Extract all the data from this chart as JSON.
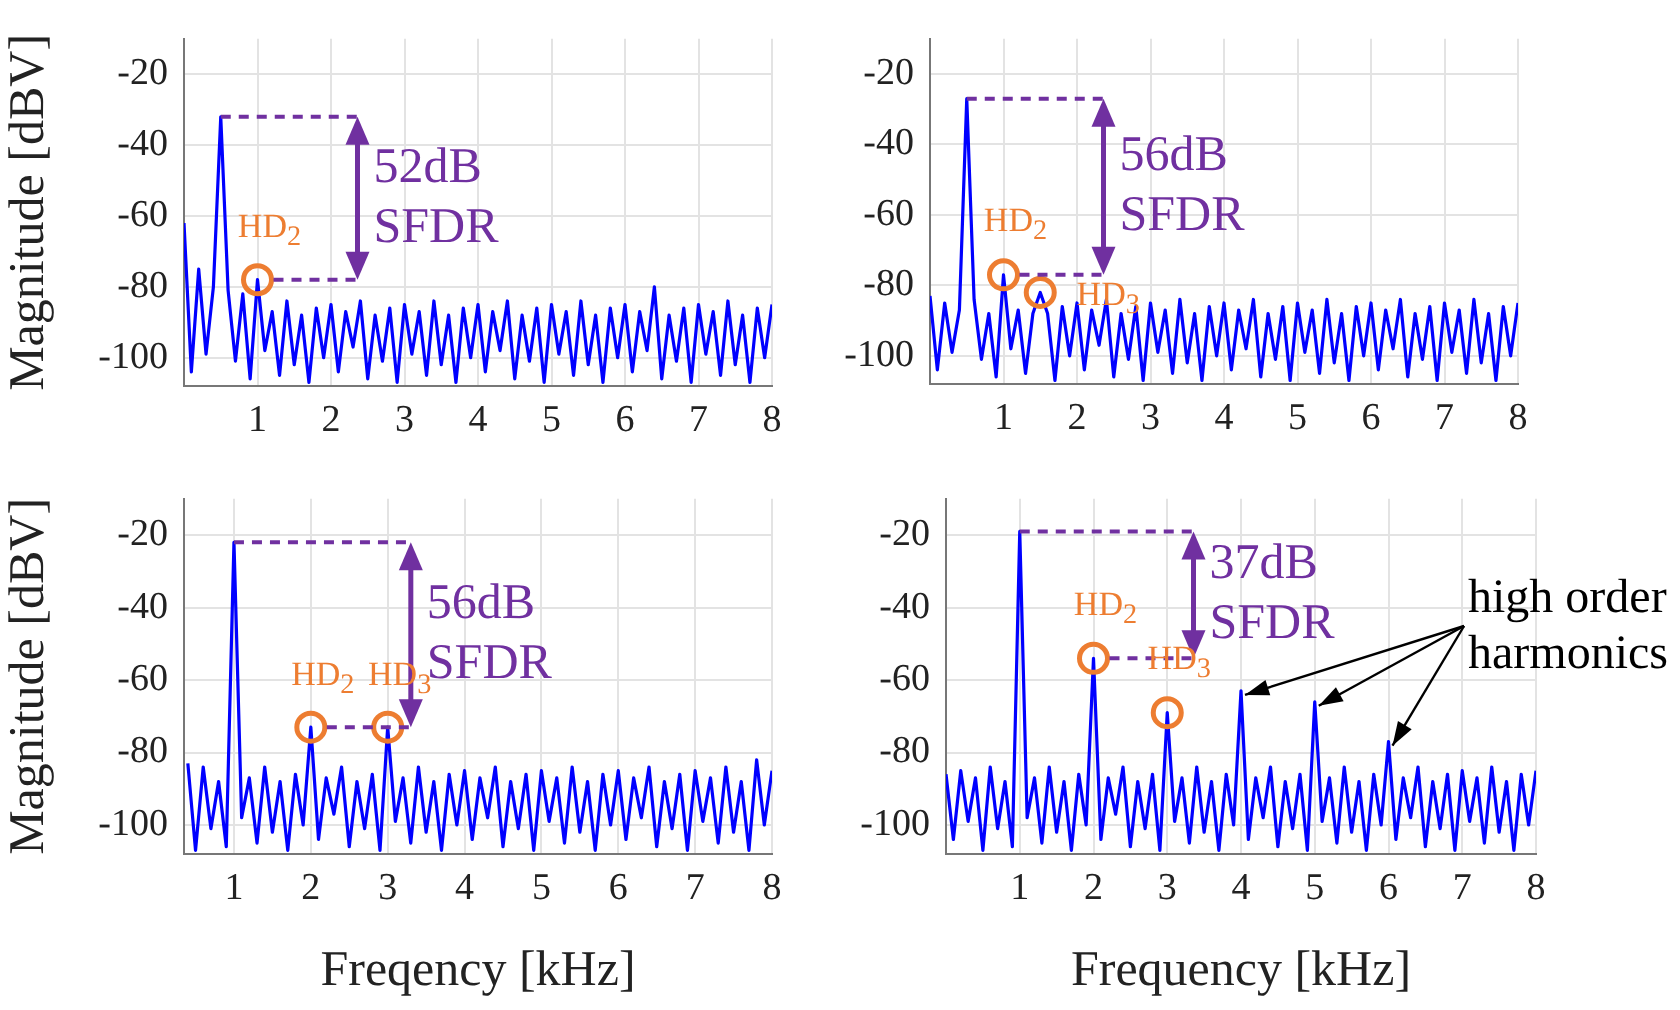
{
  "chart_data": [
    {
      "type": "line",
      "ylabel": "Magnitude [dBV]",
      "xlim": [
        0,
        8
      ],
      "ylim": [
        -108,
        -10
      ],
      "xticks": [
        1,
        2,
        3,
        4,
        5,
        6,
        7,
        8
      ],
      "yticks": [
        -100,
        -80,
        -60,
        -40,
        -20
      ],
      "grid": true,
      "x": [
        0,
        0.1,
        0.2,
        0.3,
        0.4,
        0.5,
        0.6,
        0.7,
        0.8,
        0.9,
        1,
        1.1,
        1.2,
        1.3,
        1.4,
        1.5,
        1.6,
        1.7,
        1.8,
        1.9,
        2,
        2.1,
        2.2,
        2.3,
        2.4,
        2.5,
        2.6,
        2.7,
        2.8,
        2.9,
        3,
        3.1,
        3.2,
        3.3,
        3.4,
        3.5,
        3.6,
        3.7,
        3.8,
        3.9,
        4,
        4.1,
        4.2,
        4.3,
        4.4,
        4.5,
        4.6,
        4.7,
        4.8,
        4.9,
        5,
        5.1,
        5.2,
        5.3,
        5.4,
        5.5,
        5.6,
        5.7,
        5.8,
        5.9,
        6,
        6.1,
        6.2,
        6.3,
        6.4,
        6.5,
        6.6,
        6.7,
        6.8,
        6.9,
        7,
        7.1,
        7.2,
        7.3,
        7.4,
        7.5,
        7.6,
        7.7,
        7.8,
        7.9,
        8
      ],
      "series": [
        {
          "color": "#0000ff",
          "values": [
            -62,
            -104,
            -75,
            -99,
            -80,
            -32,
            -81,
            -101,
            -82,
            -106,
            -78,
            -98,
            -87,
            -105,
            -84,
            -102,
            -88,
            -107,
            -86,
            -100,
            -85,
            -104,
            -87,
            -97,
            -84,
            -106,
            -88,
            -101,
            -86,
            -107,
            -85,
            -99,
            -87,
            -105,
            -84,
            -102,
            -88,
            -107,
            -86,
            -100,
            -85,
            -104,
            -87,
            -98,
            -84,
            -106,
            -88,
            -101,
            -86,
            -107,
            -85,
            -99,
            -87,
            -105,
            -84,
            -102,
            -88,
            -107,
            -86,
            -100,
            -85,
            -104,
            -87,
            -98,
            -80,
            -106,
            -88,
            -101,
            -86,
            -107,
            -85,
            -99,
            -87,
            -105,
            -84,
            -102,
            -88,
            -107,
            -86,
            -100,
            -85
          ]
        },
        {
          "type": "scatter",
          "color": "#ed7d31",
          "marker": "circle",
          "x": [
            1
          ],
          "values": [
            -78
          ]
        }
      ],
      "annotations": [
        {
          "text": "52dB\nSFDR",
          "x": 1,
          "y": -78
        },
        "HD$_{2}$"
      ]
    },
    {
      "type": "line",
      "xlim": [
        0,
        8
      ],
      "ylim": [
        -108,
        -10
      ],
      "xticks": [
        1,
        2,
        3,
        4,
        5,
        6,
        7,
        8
      ],
      "yticks": [
        -100,
        -80,
        -60,
        -40,
        -20
      ],
      "grid": true,
      "x": [
        0,
        0.1,
        0.2,
        0.3,
        0.4,
        0.5,
        0.6,
        0.7,
        0.8,
        0.9,
        1,
        1.1,
        1.2,
        1.3,
        1.4,
        1.5,
        1.6,
        1.7,
        1.8,
        1.9,
        2,
        2.1,
        2.2,
        2.3,
        2.4,
        2.5,
        2.6,
        2.7,
        2.8,
        2.9,
        3,
        3.1,
        3.2,
        3.3,
        3.4,
        3.5,
        3.6,
        3.7,
        3.8,
        3.9,
        4,
        4.1,
        4.2,
        4.3,
        4.4,
        4.5,
        4.6,
        4.7,
        4.8,
        4.9,
        5,
        5.1,
        5.2,
        5.3,
        5.4,
        5.5,
        5.6,
        5.7,
        5.8,
        5.9,
        6,
        6.1,
        6.2,
        6.3,
        6.4,
        6.5,
        6.6,
        6.7,
        6.8,
        6.9,
        7,
        7.1,
        7.2,
        7.3,
        7.4,
        7.5,
        7.6,
        7.7,
        7.8,
        7.9,
        8
      ],
      "series": [
        {
          "color": "#0000ff",
          "values": [
            -83,
            -104,
            -85,
            -99,
            -87,
            -27,
            -84,
            -101,
            -88,
            -106,
            -77,
            -98,
            -87,
            -105,
            -88,
            -82,
            -88,
            -107,
            -86,
            -100,
            -85,
            -104,
            -87,
            -97,
            -84,
            -106,
            -88,
            -101,
            -86,
            -107,
            -85,
            -99,
            -87,
            -105,
            -84,
            -102,
            -88,
            -107,
            -86,
            -100,
            -85,
            -104,
            -87,
            -98,
            -84,
            -106,
            -88,
            -101,
            -86,
            -107,
            -85,
            -99,
            -87,
            -105,
            -84,
            -102,
            -88,
            -107,
            -86,
            -100,
            -85,
            -104,
            -87,
            -98,
            -84,
            -106,
            -88,
            -101,
            -86,
            -107,
            -85,
            -99,
            -87,
            -105,
            -84,
            -102,
            -88,
            -107,
            -86,
            -100,
            -85
          ]
        },
        {
          "type": "scatter",
          "color": "#ed7d31",
          "marker": "circle",
          "x": [
            1,
            1.5
          ],
          "values": [
            -77,
            -82
          ]
        }
      ],
      "annotations": [
        {
          "text": "56dB\nSFDR",
          "x": 1,
          "y": -77
        },
        "HD$_{2}$",
        "HD$_{3}$"
      ]
    },
    {
      "type": "line",
      "xlabel": "Freqency [kHz]",
      "ylabel": "Magnitude [dBV]",
      "xlim": [
        0.35,
        8
      ],
      "ylim": [
        -108,
        -10
      ],
      "xticks": [
        1,
        2,
        3,
        4,
        5,
        6,
        7,
        8
      ],
      "yticks": [
        -100,
        -80,
        -60,
        -40,
        -20
      ],
      "grid": true,
      "x": [
        0.4,
        0.5,
        0.6,
        0.7,
        0.8,
        0.9,
        1,
        1.1,
        1.2,
        1.3,
        1.4,
        1.5,
        1.6,
        1.7,
        1.8,
        1.9,
        2,
        2.1,
        2.2,
        2.3,
        2.4,
        2.5,
        2.6,
        2.7,
        2.8,
        2.9,
        3,
        3.1,
        3.2,
        3.3,
        3.4,
        3.5,
        3.6,
        3.7,
        3.8,
        3.9,
        4,
        4.1,
        4.2,
        4.3,
        4.4,
        4.5,
        4.6,
        4.7,
        4.8,
        4.9,
        5,
        5.1,
        5.2,
        5.3,
        5.4,
        5.5,
        5.6,
        5.7,
        5.8,
        5.9,
        6,
        6.1,
        6.2,
        6.3,
        6.4,
        6.5,
        6.6,
        6.7,
        6.8,
        6.9,
        7,
        7.1,
        7.2,
        7.3,
        7.4,
        7.5,
        7.6,
        7.7,
        7.8,
        7.9,
        8
      ],
      "series": [
        {
          "color": "#0000ff",
          "values": [
            -83,
            -107,
            -84,
            -101,
            -88,
            -106,
            -22,
            -98,
            -87,
            -105,
            -84,
            -102,
            -88,
            -107,
            -86,
            -100,
            -73,
            -104,
            -87,
            -97,
            -84,
            -106,
            -88,
            -101,
            -86,
            -107,
            -73,
            -99,
            -87,
            -105,
            -84,
            -102,
            -88,
            -107,
            -86,
            -100,
            -85,
            -104,
            -87,
            -98,
            -84,
            -106,
            -88,
            -101,
            -86,
            -107,
            -85,
            -99,
            -87,
            -105,
            -84,
            -102,
            -88,
            -107,
            -86,
            -100,
            -85,
            -104,
            -87,
            -98,
            -84,
            -106,
            -88,
            -101,
            -86,
            -107,
            -85,
            -99,
            -87,
            -105,
            -84,
            -102,
            -88,
            -107,
            -82,
            -100,
            -85
          ]
        },
        {
          "type": "scatter",
          "color": "#ed7d31",
          "marker": "circle",
          "x": [
            2,
            3
          ],
          "values": [
            -73,
            -73
          ]
        }
      ],
      "annotations": [
        {
          "text": "56dB\nSFDR",
          "x": 2,
          "y": -73
        },
        "HD$_{2}$",
        "HD$_{3}$"
      ]
    },
    {
      "type": "line",
      "xlabel": "Frequency [kHz]",
      "xlim": [
        0,
        8
      ],
      "ylim": [
        -108,
        -10
      ],
      "xticks": [
        1,
        2,
        3,
        4,
        5,
        6,
        7,
        8
      ],
      "yticks": [
        -100,
        -80,
        -60,
        -40,
        -20
      ],
      "grid": true,
      "x": [
        0,
        0.1,
        0.2,
        0.3,
        0.4,
        0.5,
        0.6,
        0.7,
        0.8,
        0.9,
        1,
        1.1,
        1.2,
        1.3,
        1.4,
        1.5,
        1.6,
        1.7,
        1.8,
        1.9,
        2,
        2.1,
        2.2,
        2.3,
        2.4,
        2.5,
        2.6,
        2.7,
        2.8,
        2.9,
        3,
        3.1,
        3.2,
        3.3,
        3.4,
        3.5,
        3.6,
        3.7,
        3.8,
        3.9,
        4,
        4.1,
        4.2,
        4.3,
        4.4,
        4.5,
        4.6,
        4.7,
        4.8,
        4.9,
        5,
        5.1,
        5.2,
        5.3,
        5.4,
        5.5,
        5.6,
        5.7,
        5.8,
        5.9,
        6,
        6.1,
        6.2,
        6.3,
        6.4,
        6.5,
        6.6,
        6.7,
        6.8,
        6.9,
        7,
        7.1,
        7.2,
        7.3,
        7.4,
        7.5,
        7.6,
        7.7,
        7.8,
        7.9,
        8
      ],
      "series": [
        {
          "color": "#0000ff",
          "values": [
            -86,
            -104,
            -85,
            -99,
            -87,
            -107,
            -84,
            -101,
            -88,
            -106,
            -19,
            -98,
            -87,
            -105,
            -84,
            -102,
            -88,
            -107,
            -86,
            -100,
            -54,
            -104,
            -87,
            -97,
            -84,
            -106,
            -88,
            -101,
            -86,
            -107,
            -69,
            -99,
            -87,
            -105,
            -84,
            -102,
            -88,
            -107,
            -86,
            -100,
            -63,
            -104,
            -87,
            -98,
            -84,
            -106,
            -88,
            -101,
            -86,
            -107,
            -66,
            -99,
            -87,
            -105,
            -84,
            -102,
            -88,
            -107,
            -86,
            -100,
            -77,
            -104,
            -87,
            -98,
            -84,
            -106,
            -88,
            -101,
            -86,
            -107,
            -85,
            -99,
            -87,
            -105,
            -84,
            -102,
            -88,
            -107,
            -86,
            -100,
            -85
          ]
        },
        {
          "type": "scatter",
          "color": "#ed7d31",
          "marker": "circle",
          "x": [
            2,
            3
          ],
          "values": [
            -54,
            -69
          ]
        }
      ],
      "annotations": [
        {
          "text": "37dB\nSFDR",
          "x": 2,
          "y": -54
        },
        "HD$_{2}$",
        "HD$_{3}$",
        {
          "text": "high order\nharmonics",
          "x": 5,
          "y": -66
        }
      ]
    }
  ]
}
